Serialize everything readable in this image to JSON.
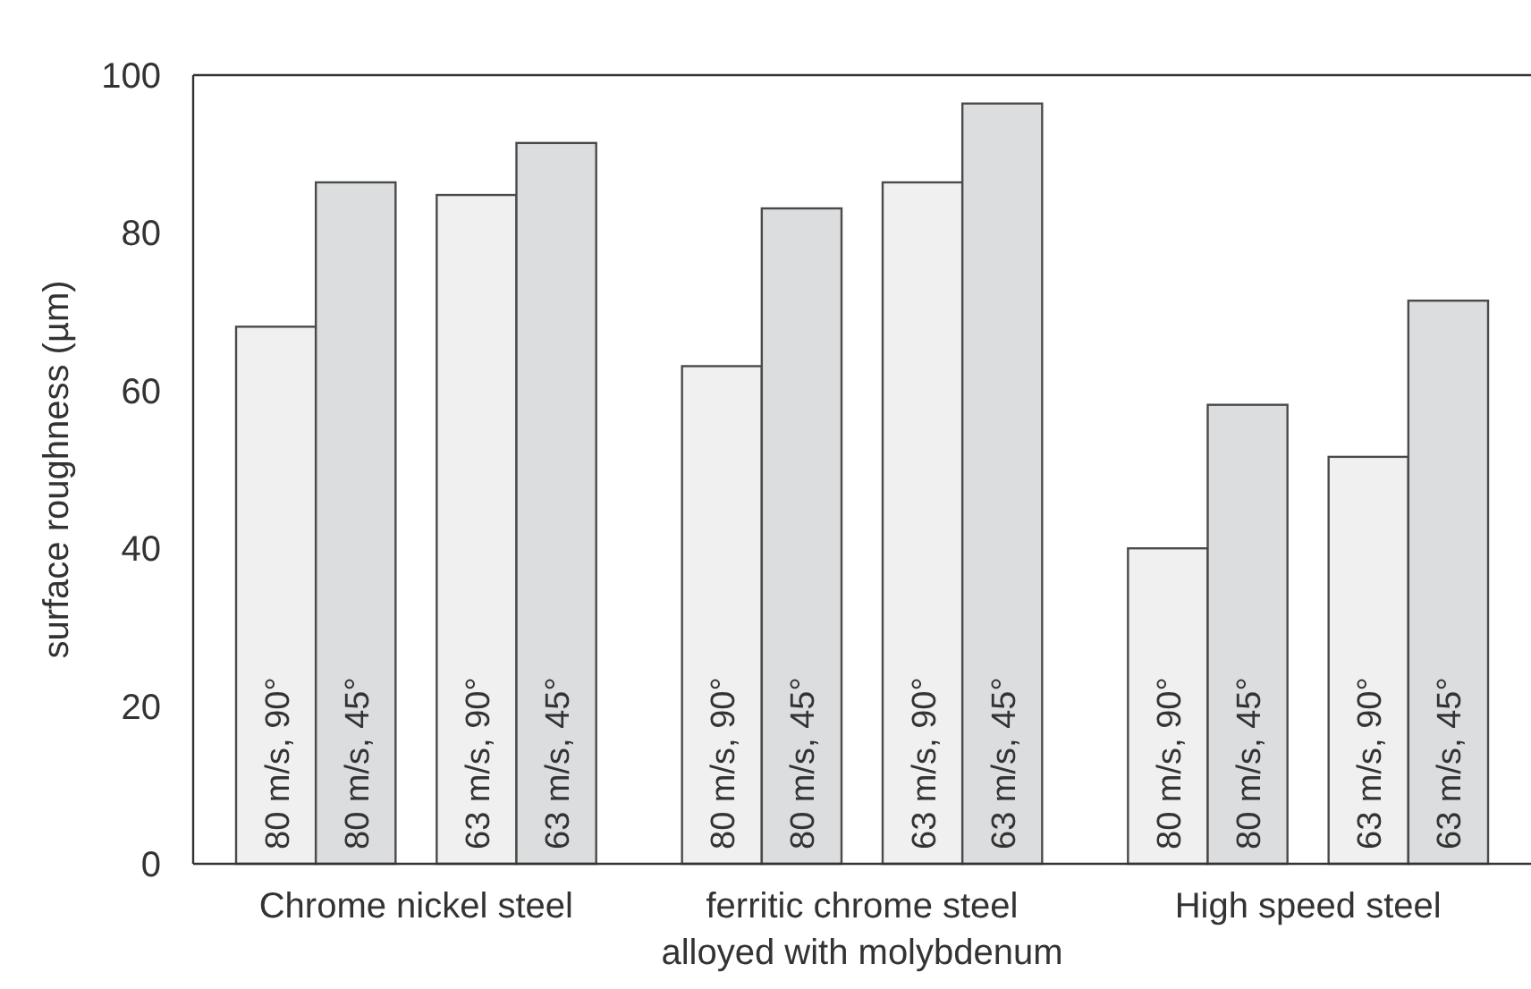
{
  "chart_data": {
    "type": "bar",
    "ylabel": "surface roughness (µm)",
    "categories": [
      "Chrome nickel steel",
      "ferritic chrome steel\nalloyed with molybdenum",
      "High speed steel"
    ],
    "series": [
      {
        "name": "80 m/s, 90°",
        "color": "#f0f0f0",
        "values": [
          68.1,
          63.1,
          40
        ]
      },
      {
        "name": "80 m/s, 45°",
        "color": "#dcdddf",
        "values": [
          86.4,
          83.1,
          58.2
        ]
      },
      {
        "name": "63 m/s, 90°",
        "color": "#f0f0f0",
        "values": [
          84.8,
          86.4,
          51.6
        ]
      },
      {
        "name": "63 m/s, 45°",
        "color": "#dcdddf",
        "values": [
          91.4,
          96.4,
          71.4
        ]
      }
    ],
    "ylim": [
      0,
      100
    ],
    "yticks": [
      0,
      20,
      40,
      60,
      80,
      100
    ],
    "grid": false
  }
}
